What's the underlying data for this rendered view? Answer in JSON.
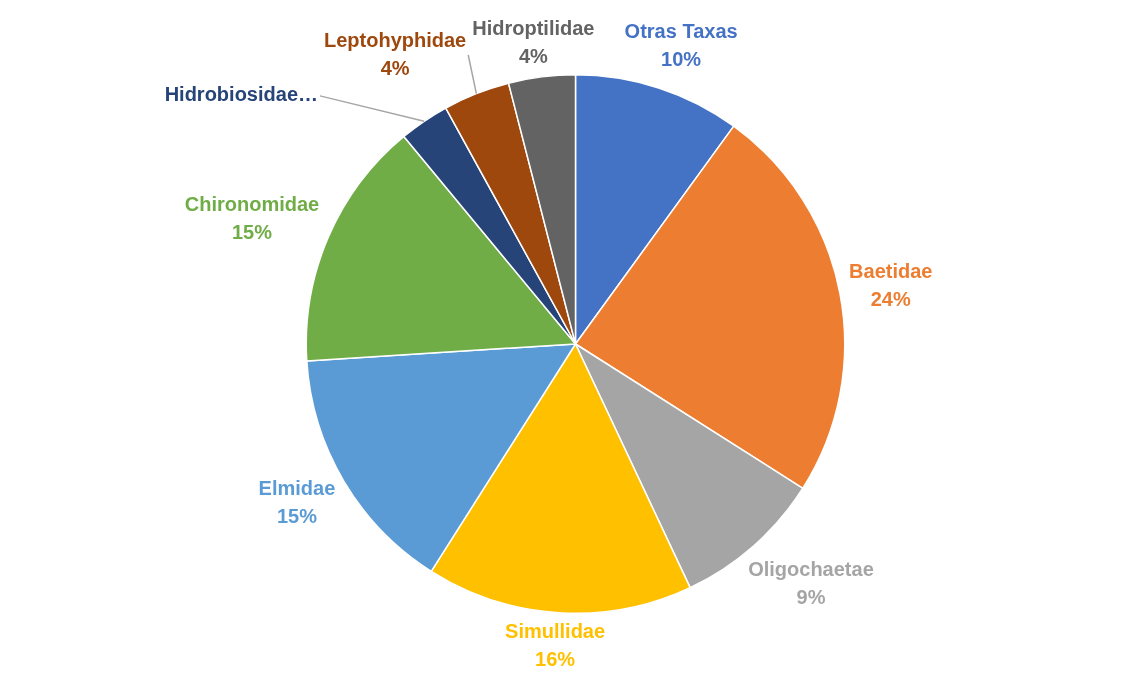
{
  "chart_data": {
    "type": "pie",
    "categories": [
      "Otras Taxas",
      "Baetidae",
      "Oligochaetae",
      "Simullidae",
      "Elmidae",
      "Chironomidae",
      "Hidrobiosidae…",
      "Leptohyphidae",
      "Hidroptilidae"
    ],
    "values": [
      10,
      24,
      9,
      16,
      15,
      15,
      3,
      4,
      4
    ],
    "colors": [
      "#4472c4",
      "#ed7d31",
      "#a5a5a5",
      "#ffc000",
      "#5b9bd5",
      "#70ad47",
      "#264478",
      "#9e480e",
      "#636363"
    ],
    "value_labels": [
      "10%",
      "24%",
      "9%",
      "16%",
      "15%",
      "15%",
      null,
      "4%",
      "4%"
    ],
    "legend": false
  }
}
